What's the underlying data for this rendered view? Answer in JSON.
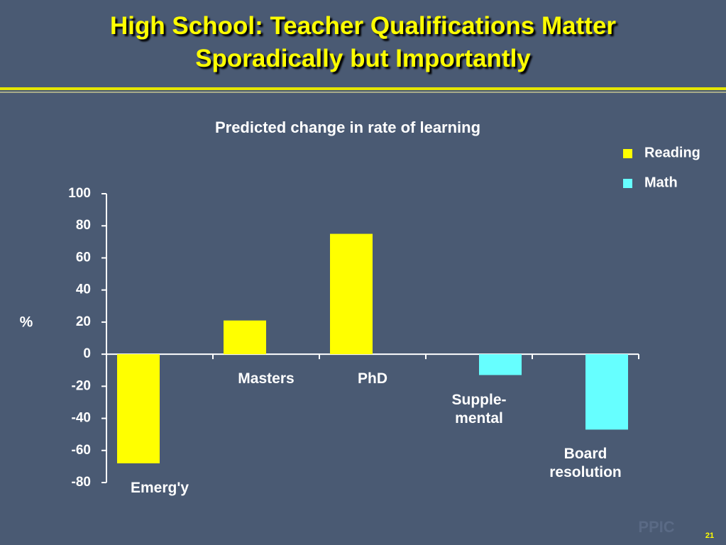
{
  "chart_data": {
    "type": "bar",
    "title": "High School:  Teacher Qualifications Matter\nSporadically but Importantly",
    "subtitle": "Predicted change in rate of learning",
    "y_label": "%",
    "categories": [
      "Emerg'y",
      "Masters",
      "PhD",
      "Supple-\nmental",
      "Board\nresolution"
    ],
    "series": [
      {
        "name": "Reading",
        "color": "#ffff00",
        "values": [
          -68,
          21,
          75,
          null,
          null
        ]
      },
      {
        "name": "Math",
        "color": "#66ffff",
        "values": [
          null,
          null,
          null,
          -13,
          -47
        ]
      }
    ],
    "ylim": [
      -80,
      100
    ],
    "yticks": [
      -80,
      -60,
      -40,
      -20,
      0,
      20,
      40,
      60,
      80,
      100
    ],
    "grid": false,
    "legend": "upper right"
  },
  "slide": {
    "logo": "PPIC",
    "page_number": "21"
  }
}
